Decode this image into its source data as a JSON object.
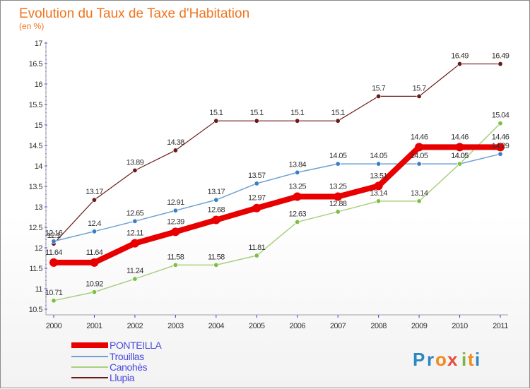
{
  "chart_data": {
    "type": "line",
    "title": "Evolution du Taux de Taxe d'Habitation",
    "subtitle": "(en %)",
    "x": [
      "2000",
      "2001",
      "2002",
      "2003",
      "2004",
      "2005",
      "2006",
      "2007",
      "2008",
      "2009",
      "2010",
      "2011"
    ],
    "y_ticks": [
      "10.5",
      "11",
      "11.5",
      "12",
      "12.5",
      "13",
      "13.5",
      "14",
      "14.5",
      "15",
      "15.5",
      "16",
      "16.5",
      "17"
    ],
    "ylim": [
      10.5,
      17
    ],
    "grid": false,
    "legend_position": "bottom-left",
    "series": [
      {
        "name": "Llupia",
        "color": "#6b1a1a",
        "marker": "#6b1a1a",
        "width": 1.2,
        "marker_r": 3.2,
        "values": [
          12.1,
          13.17,
          13.89,
          14.38,
          15.1,
          15.1,
          15.1,
          15.1,
          15.7,
          15.7,
          16.49,
          16.49
        ],
        "labels": [
          "12.1",
          "13.17",
          "13.89",
          "14.38",
          "15.1",
          "15.1",
          "15.1",
          "15.1",
          "15.7",
          "15.7",
          "16.49",
          "16.49"
        ]
      },
      {
        "name": "Trouillas",
        "color": "#6fa0d0",
        "marker": "#3a7fc4",
        "width": 1.5,
        "marker_r": 3.2,
        "values": [
          12.16,
          12.4,
          12.65,
          12.91,
          13.17,
          13.57,
          13.84,
          14.05,
          14.05,
          14.05,
          14.05,
          14.29
        ],
        "labels": [
          "12.16",
          "12.4",
          "12.65",
          "12.91",
          "13.17",
          "13.57",
          "13.84",
          "14.05",
          "14.05",
          "14.05",
          "14.05",
          "14.29"
        ]
      },
      {
        "name": "Canohès",
        "color": "#a8d080",
        "marker": "#7cc043",
        "width": 1.5,
        "marker_r": 3.2,
        "values": [
          10.71,
          10.92,
          11.24,
          11.58,
          11.58,
          11.81,
          12.63,
          12.88,
          13.14,
          13.14,
          14.05,
          15.04
        ],
        "labels": [
          "10.71",
          "10.92",
          "11.24",
          "11.58",
          "11.58",
          "11.81",
          "12.63",
          "12.88",
          "13.14",
          "13.14",
          "14.05",
          "15.04"
        ]
      },
      {
        "name": "PONTEILLA",
        "color": "#e80000",
        "marker": "#e80000",
        "width": 8,
        "marker_r": 6,
        "values": [
          11.64,
          11.64,
          12.11,
          12.39,
          12.68,
          12.97,
          13.25,
          13.25,
          13.51,
          14.46,
          14.46,
          14.46
        ],
        "labels": [
          "11.64",
          "11.64",
          "12.11",
          "12.39",
          "12.68",
          "12.97",
          "13.25",
          "13.25",
          "13.51",
          "14.46",
          "14.46",
          "14.46"
        ]
      }
    ],
    "legend_order": [
      "PONTEILLA",
      "Trouillas",
      "Canohès",
      "Llupia"
    ],
    "legend_colors": [
      "#e80000",
      "#6fa0d0",
      "#a8d080",
      "#6b1a1a"
    ],
    "legend_text_color": "#4a4ae0"
  },
  "brand": {
    "logo_letters": [
      "P",
      "r",
      "o",
      "x",
      "i",
      "t",
      "i"
    ],
    "logo_colors": [
      "#2e86c1",
      "#2e86c1",
      "#f08c1e",
      "#e74c3c",
      "#7cb342",
      "#f08c1e",
      "#2e86c1"
    ]
  }
}
